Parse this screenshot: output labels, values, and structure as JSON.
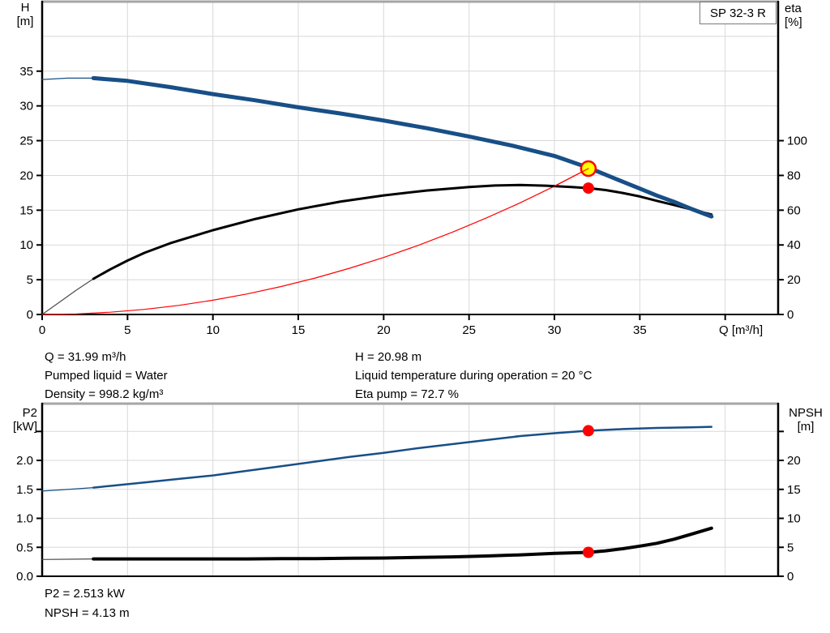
{
  "badge": "SP 32-3 R",
  "colors": {
    "curve_blue": "#184f87",
    "curve_black": "#000000",
    "system_red": "#ff0000",
    "duty_yellow": "#ffff00",
    "grid": "#d8d8d8",
    "border_gray": "#a6a6a6"
  },
  "info_top": {
    "col1": [
      "Q = 31.99 m³/h",
      "Pumped liquid = Water",
      "Density = 998.2 kg/m³"
    ],
    "col2": [
      "H = 20.98 m",
      "Liquid temperature during operation = 20 °C",
      "Eta pump = 72.7 %"
    ]
  },
  "info_bottom": {
    "lines": [
      "P2 = 2.513 kW",
      "NPSH = 4.13 m"
    ]
  },
  "chart_data": [
    {
      "type": "line",
      "title": "SP 32-3 R",
      "xlabel": "Q [m³/h]",
      "x": {
        "lim": [
          0,
          43.1
        ],
        "tick_values": [
          0,
          5,
          10,
          15,
          20,
          25,
          30,
          35,
          40
        ],
        "tick_labels": [
          "0",
          "5",
          "10",
          "15",
          "20",
          "25",
          "30",
          "35",
          null
        ],
        "grid_values": [
          5,
          10,
          15,
          20,
          25,
          30,
          35,
          40
        ]
      },
      "left": {
        "label": "H [m]",
        "label_lines": [
          "H",
          "[m]"
        ],
        "lim": [
          0,
          45
        ],
        "tick_values": [
          0,
          5,
          10,
          15,
          20,
          25,
          30,
          35
        ],
        "tick_labels": [
          "0",
          "5",
          "10",
          "15",
          "20",
          "25",
          "30",
          "35"
        ],
        "grid_values": [
          5,
          10,
          15,
          20,
          25,
          30,
          35,
          40
        ]
      },
      "right": {
        "label": "eta [%]",
        "label_lines": [
          "eta",
          "[%]"
        ],
        "lim": [
          0,
          180
        ],
        "tick_values": [
          0,
          20,
          40,
          60,
          80,
          100
        ],
        "tick_labels": [
          "0",
          "20",
          "40",
          "60",
          "80",
          "100"
        ]
      },
      "top_border": true,
      "series": [
        {
          "name": "system-curve",
          "axis": "left",
          "color": "#ff0000",
          "width": 1.2,
          "tail_overlay": true,
          "points": [
            [
              0,
              0
            ],
            [
              2,
              0.08
            ],
            [
              4,
              0.33
            ],
            [
              6,
              0.74
            ],
            [
              8,
              1.31
            ],
            [
              10,
              2.05
            ],
            [
              12,
              2.95
            ],
            [
              14,
              4.02
            ],
            [
              16,
              5.25
            ],
            [
              18,
              6.64
            ],
            [
              20,
              8.2
            ],
            [
              22,
              9.92
            ],
            [
              24,
              11.81
            ],
            [
              26,
              13.86
            ],
            [
              28,
              16.07
            ],
            [
              30,
              18.45
            ],
            [
              31.99,
              20.98
            ]
          ]
        },
        {
          "name": "efficiency-curve",
          "axis": "right",
          "color": "#000000",
          "thin_color": "#4a4a4a",
          "width": 3,
          "thin_until": 3,
          "points": [
            [
              0,
              0
            ],
            [
              1,
              7
            ],
            [
              2,
              14
            ],
            [
              3,
              20.5
            ],
            [
              4,
              26
            ],
            [
              5,
              31
            ],
            [
              6,
              35.5
            ],
            [
              7.5,
              41
            ],
            [
              9,
              45.5
            ],
            [
              10,
              48.5
            ],
            [
              12.5,
              55
            ],
            [
              15,
              60.5
            ],
            [
              17.5,
              65
            ],
            [
              20,
              68.5
            ],
            [
              22.5,
              71.3
            ],
            [
              25,
              73.3
            ],
            [
              26.5,
              74.2
            ],
            [
              28,
              74.5
            ],
            [
              29.5,
              74.1
            ],
            [
              31,
              73.3
            ],
            [
              32,
              72.7
            ],
            [
              33,
              71.6
            ],
            [
              34,
              69.9
            ],
            [
              35,
              67.9
            ],
            [
              36,
              65.4
            ],
            [
              37,
              63
            ],
            [
              38,
              60.5
            ],
            [
              39.2,
              57.5
            ]
          ]
        },
        {
          "name": "pump-curve",
          "axis": "left",
          "color": "#184f87",
          "width": 5,
          "thin_until": 3,
          "points": [
            [
              0,
              33.8
            ],
            [
              1.5,
              34
            ],
            [
              3,
              34
            ],
            [
              5,
              33.6
            ],
            [
              7.5,
              32.7
            ],
            [
              10,
              31.7
            ],
            [
              12.5,
              30.8
            ],
            [
              15,
              29.8
            ],
            [
              17.5,
              28.9
            ],
            [
              20,
              27.9
            ],
            [
              22.5,
              26.8
            ],
            [
              25,
              25.6
            ],
            [
              27.5,
              24.3
            ],
            [
              30,
              22.8
            ],
            [
              32,
              21.1
            ],
            [
              33,
              20.1
            ],
            [
              34,
              19.1
            ],
            [
              35,
              18.1
            ],
            [
              36,
              17.1
            ],
            [
              37,
              16.2
            ],
            [
              38,
              15.2
            ],
            [
              39.2,
              14.1
            ]
          ]
        }
      ],
      "markers": [
        {
          "name": "duty-point",
          "axis": "left",
          "q": 31.99,
          "v": 20.98,
          "r": 9,
          "fill": "#ffff00",
          "stroke": "#ff0000",
          "stroke_width": 2.5
        },
        {
          "name": "efficiency-point",
          "axis": "right",
          "q": 31.99,
          "v": 72.7,
          "r": 7,
          "fill": "#ff0000",
          "stroke": "none",
          "stroke_width": 0
        }
      ]
    },
    {
      "type": "line",
      "title": "",
      "xlabel": "",
      "x": {
        "lim": [
          0,
          43.1
        ],
        "tick_values": [],
        "tick_labels": [],
        "grid_values": [
          5,
          10,
          15,
          20,
          25,
          30,
          35,
          40
        ]
      },
      "left": {
        "label": "P2 [kW]",
        "label_lines": [
          "P2",
          "[kW]"
        ],
        "lim": [
          0,
          2.98
        ],
        "tick_values": [
          0,
          0.5,
          1,
          1.5,
          2,
          2.5
        ],
        "tick_labels": [
          "0.0",
          "0.5",
          "1.0",
          "1.5",
          "2.0",
          null
        ],
        "grid_values": [
          0.5,
          1,
          1.5,
          2,
          2.5
        ]
      },
      "right": {
        "label": "NPSH [m]",
        "label_lines": [
          "NPSH",
          "[m]"
        ],
        "lim": [
          0,
          29.8
        ],
        "tick_values": [
          0,
          5,
          10,
          15,
          20,
          25
        ],
        "tick_labels": [
          "0",
          "5",
          "10",
          "15",
          "20",
          null
        ]
      },
      "top_border": true,
      "series": [
        {
          "name": "p2-curve",
          "axis": "left",
          "color": "#184f87",
          "width": 2.5,
          "thin_until": 3,
          "points": [
            [
              0,
              1.47
            ],
            [
              2,
              1.51
            ],
            [
              3,
              1.53
            ],
            [
              4,
              1.56
            ],
            [
              6,
              1.62
            ],
            [
              8,
              1.68
            ],
            [
              10,
              1.74
            ],
            [
              12,
              1.82
            ],
            [
              14,
              1.9
            ],
            [
              16,
              1.98
            ],
            [
              18,
              2.06
            ],
            [
              20,
              2.13
            ],
            [
              22,
              2.21
            ],
            [
              24,
              2.28
            ],
            [
              26,
              2.35
            ],
            [
              28,
              2.42
            ],
            [
              30,
              2.47
            ],
            [
              32,
              2.513
            ],
            [
              34,
              2.54
            ],
            [
              36,
              2.56
            ],
            [
              38,
              2.57
            ],
            [
              39.2,
              2.58
            ]
          ]
        },
        {
          "name": "npsh-curve",
          "axis": "right",
          "color": "#000000",
          "thin_color": "#4a4a4a",
          "width": 4,
          "thin_until": 3,
          "points": [
            [
              0,
              2.9
            ],
            [
              2,
              2.95
            ],
            [
              3,
              3
            ],
            [
              4,
              3
            ],
            [
              6,
              3
            ],
            [
              8,
              3
            ],
            [
              10,
              3
            ],
            [
              12,
              3
            ],
            [
              14,
              3.05
            ],
            [
              16,
              3.05
            ],
            [
              18,
              3.1
            ],
            [
              20,
              3.15
            ],
            [
              22,
              3.25
            ],
            [
              24,
              3.35
            ],
            [
              26,
              3.5
            ],
            [
              28,
              3.7
            ],
            [
              30,
              3.95
            ],
            [
              32,
              4.13
            ],
            [
              33,
              4.4
            ],
            [
              34,
              4.75
            ],
            [
              35,
              5.2
            ],
            [
              36,
              5.7
            ],
            [
              37,
              6.4
            ],
            [
              38,
              7.25
            ],
            [
              39.2,
              8.3
            ]
          ]
        }
      ],
      "markers": [
        {
          "name": "p2-point",
          "axis": "left",
          "q": 31.99,
          "v": 2.513,
          "r": 7,
          "fill": "#ff0000",
          "stroke": "none",
          "stroke_width": 0
        },
        {
          "name": "npsh-point",
          "axis": "right",
          "q": 31.99,
          "v": 4.13,
          "r": 7,
          "fill": "#ff0000",
          "stroke": "none",
          "stroke_width": 0
        }
      ]
    }
  ]
}
